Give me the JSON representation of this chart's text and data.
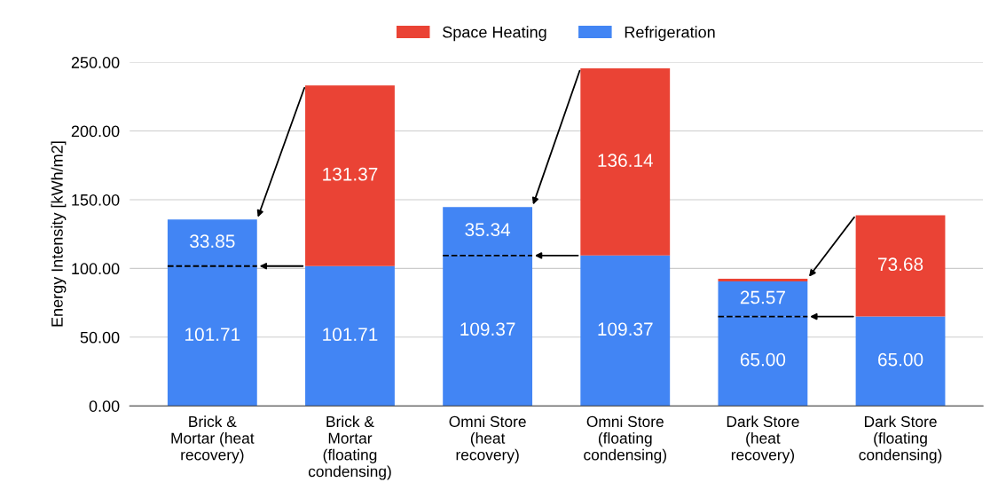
{
  "chart_data": {
    "type": "bar",
    "stacked": true,
    "ylabel": "Energy Intensity [kWh/m2]",
    "categories": [
      "Brick &\nMortar (heat\nrecovery)",
      "Brick &\nMortar\n(floating\ncondensing)",
      "Omni Store\n(heat\nrecovery)",
      "Omni Store\n(floating\ncondensing)",
      "Dark Store\n(heat\nrecovery)",
      "Dark Store\n(floating\ncondensing)"
    ],
    "series": [
      {
        "name": "Refrigeration",
        "color": "#4285f4",
        "values": [
          101.71,
          101.71,
          109.37,
          109.37,
          65.0,
          65.0
        ],
        "value_labels": [
          "101.71",
          "101.71",
          "109.37",
          "109.37",
          "65.00",
          "65.00"
        ]
      },
      {
        "color": "#4285f4",
        "values": [
          33.85,
          null,
          35.34,
          null,
          25.57,
          null
        ],
        "value_labels": [
          "33.85",
          null,
          "35.34",
          null,
          "25.57",
          null
        ]
      },
      {
        "name": "Space Heating",
        "color": "#ea4335",
        "values": [
          null,
          131.37,
          null,
          136.14,
          2.0,
          73.68
        ],
        "value_labels": [
          null,
          "131.37",
          null,
          "136.14",
          null,
          "73.68"
        ]
      }
    ],
    "ylim": [
      0,
      250
    ],
    "yticks": [
      {
        "value": 0,
        "label": "0.00"
      },
      {
        "value": 50,
        "label": "50.00"
      },
      {
        "value": 100,
        "label": "100.00"
      },
      {
        "value": 150,
        "label": "150.00"
      },
      {
        "value": 200,
        "label": "200.00"
      },
      {
        "value": 250,
        "label": "250.00"
      }
    ],
    "grid": "y",
    "legend": "top"
  }
}
